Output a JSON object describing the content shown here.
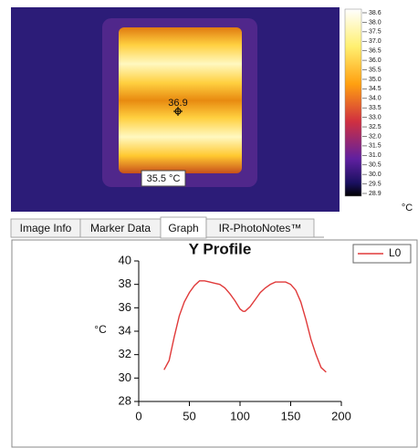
{
  "thermal_image": {
    "marker_value": "36.9",
    "spot_label": "35.5 °C"
  },
  "colorbar": {
    "labels": [
      "38.6",
      "38.0",
      "37.5",
      "37.0",
      "36.5",
      "36.0",
      "35.5",
      "35.0",
      "34.5",
      "34.0",
      "33.5",
      "33.0",
      "32.5",
      "32.0",
      "31.5",
      "31.0",
      "30.5",
      "30.0",
      "29.5",
      "28.9"
    ],
    "unit": "°C"
  },
  "tabs": [
    "Image Info",
    "Marker Data",
    "Graph",
    "IR-PhotoNotes™"
  ],
  "chart_data": {
    "type": "line",
    "title": "Y Profile",
    "ylabel": "°C",
    "series": [
      {
        "name": "L0",
        "color": "#e03a3a",
        "x": [
          25,
          30,
          35,
          40,
          45,
          50,
          55,
          60,
          65,
          70,
          75,
          80,
          85,
          90,
          95,
          100,
          103,
          105,
          110,
          115,
          120,
          125,
          130,
          135,
          140,
          145,
          150,
          155,
          160,
          165,
          170,
          175,
          180,
          185
        ],
        "values": [
          30.7,
          31.5,
          33.5,
          35.3,
          36.5,
          37.3,
          37.9,
          38.3,
          38.3,
          38.2,
          38.1,
          38.0,
          37.7,
          37.2,
          36.6,
          35.9,
          35.7,
          35.7,
          36.1,
          36.7,
          37.3,
          37.7,
          38.0,
          38.2,
          38.2,
          38.2,
          38.0,
          37.5,
          36.5,
          35.0,
          33.3,
          32.0,
          30.9,
          30.5
        ]
      }
    ],
    "xlim": [
      0,
      200
    ],
    "xticks": [
      0,
      50,
      100,
      150,
      200
    ],
    "ylim": [
      28,
      40
    ],
    "yticks": [
      28,
      30,
      32,
      34,
      36,
      38,
      40
    ],
    "grid": false
  }
}
